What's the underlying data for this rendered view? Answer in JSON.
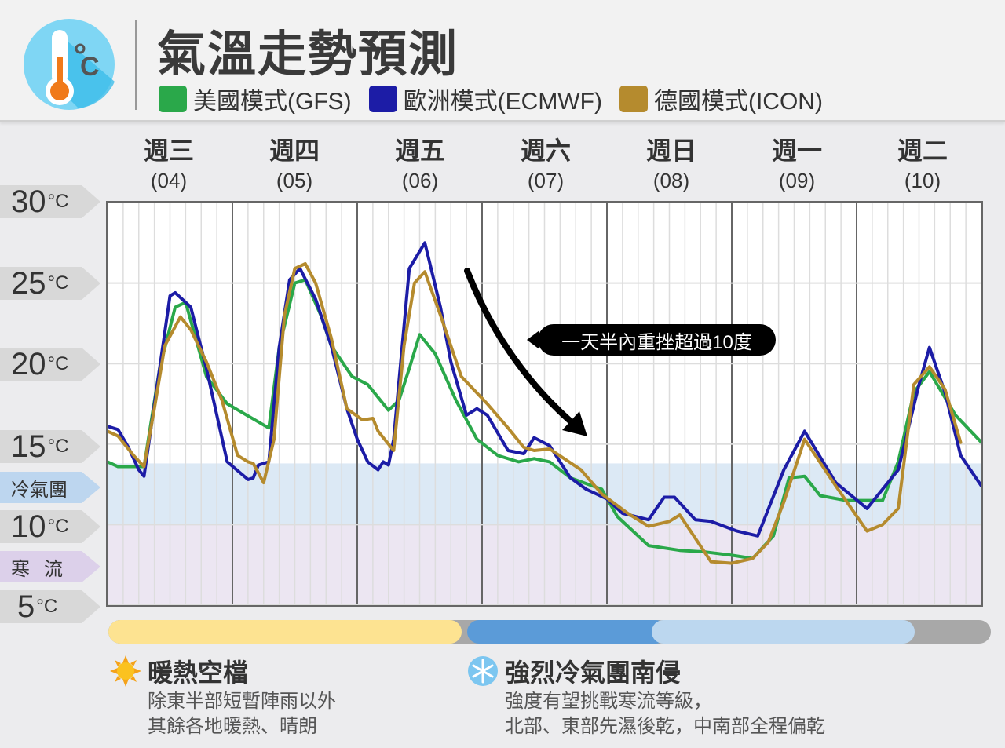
{
  "header": {
    "title": "氣溫走勢預測",
    "logo_icon": "thermometer-celsius-icon"
  },
  "legend": [
    {
      "label": "美國模式(GFS)",
      "color": "#2aa84a"
    },
    {
      "label": "歐洲模式(ECMWF)",
      "color": "#1c1ca6"
    },
    {
      "label": "德國模式(ICON)",
      "color": "#b58b2e"
    }
  ],
  "days": [
    {
      "weekday": "週三",
      "date": "(04)"
    },
    {
      "weekday": "週四",
      "date": "(05)"
    },
    {
      "weekday": "週五",
      "date": "(06)"
    },
    {
      "weekday": "週六",
      "date": "(07)"
    },
    {
      "weekday": "週日",
      "date": "(08)"
    },
    {
      "weekday": "週一",
      "date": "(09)"
    },
    {
      "weekday": "週二",
      "date": "(10)"
    }
  ],
  "y_labels": [
    {
      "value": "30",
      "unit": "°C"
    },
    {
      "value": "25",
      "unit": "°C"
    },
    {
      "value": "20",
      "unit": "°C"
    },
    {
      "value": "15",
      "unit": "°C"
    },
    {
      "value": "10",
      "unit": "°C"
    },
    {
      "value": "5",
      "unit": "°C"
    }
  ],
  "band_labels": {
    "cold_air": "冷氣團",
    "cold_surge": "寒流"
  },
  "annotation": "一天半內重挫超過10度",
  "notes": [
    {
      "icon": "sun-icon",
      "title": "暖熱空檔",
      "lines": [
        "除東半部短暫陣雨以外",
        "其餘各地暖熱、晴朗"
      ]
    },
    {
      "icon": "snowflake-icon",
      "title": "強烈冷氣團南侵",
      "lines": [
        "強度有望挑戰寒流等級，",
        "北部、東部先濕後乾，中南部全程偏乾"
      ]
    }
  ],
  "timeline_colors": {
    "warm": "#fde391",
    "cold_strong": "#5b9bd8",
    "cold_light": "#bcd7ef",
    "rest": "#a8a8a8"
  },
  "chart_data": {
    "type": "line",
    "x_unit": "day hour (DD HH)",
    "ylim": [
      5,
      30
    ],
    "yticks": [
      5,
      10,
      15,
      20,
      25,
      30
    ],
    "xlim": [
      "04 00",
      "11 00"
    ],
    "grid": true,
    "bands": [
      {
        "label": "冷氣團",
        "range": [
          10,
          13.8
        ],
        "color": "#dce9f5"
      },
      {
        "label": "寒流",
        "range": [
          5,
          10
        ],
        "color": "#ece6f2"
      }
    ],
    "series": [
      {
        "name": "美國模式(GFS)",
        "color": "#2aa84a",
        "points": [
          [
            "04 00",
            13.9
          ],
          [
            "04 02",
            13.6
          ],
          [
            "04 07",
            13.6
          ],
          [
            "04 10",
            19.7
          ],
          [
            "04 13",
            23.5
          ],
          [
            "04 15",
            23.8
          ],
          [
            "04 19",
            19.2
          ],
          [
            "04 23",
            17.5
          ],
          [
            "05 07",
            16.0
          ],
          [
            "05 09",
            21.0
          ],
          [
            "05 12",
            25.0
          ],
          [
            "05 14",
            25.2
          ],
          [
            "05 17",
            23.0
          ],
          [
            "05 19",
            21.1
          ],
          [
            "05 23",
            19.2
          ],
          [
            "06 02",
            18.7
          ],
          [
            "06 06",
            17.1
          ],
          [
            "06 08",
            17.7
          ],
          [
            "06 10",
            19.7
          ],
          [
            "06 12",
            21.8
          ],
          [
            "06 15",
            20.6
          ],
          [
            "06 19",
            17.7
          ],
          [
            "06 23",
            15.3
          ],
          [
            "07 03",
            14.3
          ],
          [
            "07 07",
            13.9
          ],
          [
            "07 10",
            14.1
          ],
          [
            "07 13",
            13.9
          ],
          [
            "07 17",
            12.9
          ],
          [
            "07 23",
            12.2
          ],
          [
            "08 02",
            10.5
          ],
          [
            "08 08",
            8.7
          ],
          [
            "08 14",
            8.4
          ],
          [
            "08 19",
            8.3
          ],
          [
            "09 00",
            8.1
          ],
          [
            "09 04",
            7.9
          ],
          [
            "09 08",
            9.3
          ],
          [
            "09 11",
            12.9
          ],
          [
            "09 14",
            13.0
          ],
          [
            "09 17",
            11.8
          ],
          [
            "09 22",
            11.5
          ],
          [
            "10 05",
            11.5
          ],
          [
            "10 08",
            13.9
          ],
          [
            "10 11",
            18.2
          ],
          [
            "10 14",
            19.5
          ],
          [
            "10 19",
            16.8
          ],
          [
            "10 24",
            15.1
          ]
        ]
      },
      {
        "name": "歐洲模式(ECMWF)",
        "color": "#1c1ca6",
        "points": [
          [
            "04 00",
            16.1
          ],
          [
            "04 02",
            15.9
          ],
          [
            "04 04",
            14.8
          ],
          [
            "04 06",
            13.4
          ],
          [
            "04 07",
            13.0
          ],
          [
            "04 10",
            19.7
          ],
          [
            "04 12",
            24.2
          ],
          [
            "04 13",
            24.4
          ],
          [
            "04 16",
            23.5
          ],
          [
            "04 19",
            19.7
          ],
          [
            "04 23",
            13.9
          ],
          [
            "05 03",
            12.8
          ],
          [
            "05 04",
            12.9
          ],
          [
            "05 05",
            13.7
          ],
          [
            "05 07",
            13.9
          ],
          [
            "05 09",
            21.0
          ],
          [
            "05 11",
            25.2
          ],
          [
            "05 13",
            25.9
          ],
          [
            "05 16",
            24.0
          ],
          [
            "05 19",
            21.1
          ],
          [
            "05 22",
            17.2
          ],
          [
            "06 00",
            15.3
          ],
          [
            "06 02",
            13.9
          ],
          [
            "06 04",
            13.4
          ],
          [
            "06 05",
            13.9
          ],
          [
            "06 06",
            13.7
          ],
          [
            "06 07",
            15.3
          ],
          [
            "06 10",
            25.9
          ],
          [
            "06 13",
            27.5
          ],
          [
            "06 16",
            23.5
          ],
          [
            "06 18",
            20.1
          ],
          [
            "06 21",
            16.8
          ],
          [
            "06 23",
            17.2
          ],
          [
            "07 01",
            16.8
          ],
          [
            "07 05",
            14.6
          ],
          [
            "07 08",
            14.4
          ],
          [
            "07 10",
            15.4
          ],
          [
            "07 13",
            14.9
          ],
          [
            "07 17",
            12.9
          ],
          [
            "07 20",
            12.2
          ],
          [
            "07 24",
            11.6
          ],
          [
            "08 03",
            10.7
          ],
          [
            "08 08",
            10.3
          ],
          [
            "08 11",
            11.7
          ],
          [
            "08 13",
            11.7
          ],
          [
            "08 17",
            10.3
          ],
          [
            "08 20",
            10.2
          ],
          [
            "09 01",
            9.6
          ],
          [
            "09 05",
            9.3
          ],
          [
            "09 10",
            13.4
          ],
          [
            "09 14",
            15.8
          ],
          [
            "09 20",
            12.6
          ],
          [
            "10 02",
            11.0
          ],
          [
            "10 08",
            13.4
          ],
          [
            "10 12",
            18.7
          ],
          [
            "10 14",
            21.0
          ],
          [
            "10 17",
            18.2
          ],
          [
            "10 20",
            14.3
          ],
          [
            "10 24",
            12.4
          ]
        ]
      },
      {
        "name": "德國模式(ICON)",
        "color": "#b58b2e",
        "points": [
          [
            "04 00",
            15.8
          ],
          [
            "04 02",
            15.5
          ],
          [
            "04 05",
            14.3
          ],
          [
            "04 07",
            13.6
          ],
          [
            "04 09",
            17.2
          ],
          [
            "04 11",
            21.1
          ],
          [
            "04 14",
            22.9
          ],
          [
            "04 16",
            22.1
          ],
          [
            "04 19",
            20.1
          ],
          [
            "04 22",
            17.7
          ],
          [
            "05 01",
            14.3
          ],
          [
            "05 03",
            13.9
          ],
          [
            "05 04",
            13.8
          ],
          [
            "05 06",
            12.6
          ],
          [
            "05 08",
            15.3
          ],
          [
            "05 10",
            23.0
          ],
          [
            "05 12",
            25.9
          ],
          [
            "05 14",
            26.2
          ],
          [
            "05 16",
            25.0
          ],
          [
            "05 19",
            21.6
          ],
          [
            "05 22",
            17.2
          ],
          [
            "06 01",
            16.5
          ],
          [
            "06 03",
            16.6
          ],
          [
            "06 04",
            15.8
          ],
          [
            "06 07",
            14.6
          ],
          [
            "06 09",
            21.1
          ],
          [
            "06 11",
            25.0
          ],
          [
            "06 13",
            25.7
          ],
          [
            "06 16",
            23.0
          ],
          [
            "06 20",
            19.2
          ],
          [
            "07 01",
            17.5
          ],
          [
            "07 05",
            16.0
          ],
          [
            "07 08",
            14.8
          ],
          [
            "07 10",
            14.6
          ],
          [
            "07 13",
            14.7
          ],
          [
            "07 19",
            13.4
          ],
          [
            "07 23",
            11.9
          ],
          [
            "08 04",
            10.7
          ],
          [
            "08 08",
            9.9
          ],
          [
            "08 12",
            10.2
          ],
          [
            "08 14",
            10.6
          ],
          [
            "08 20",
            7.7
          ],
          [
            "09 00",
            7.6
          ],
          [
            "09 04",
            7.9
          ],
          [
            "09 07",
            8.9
          ],
          [
            "09 10",
            11.4
          ],
          [
            "09 14",
            15.3
          ],
          [
            "09 20",
            12.4
          ],
          [
            "10 02",
            9.6
          ],
          [
            "10 05",
            10.0
          ],
          [
            "10 08",
            11.0
          ],
          [
            "10 11",
            18.7
          ],
          [
            "10 14",
            19.8
          ],
          [
            "10 17",
            18.4
          ],
          [
            "10 20",
            15.1
          ]
        ]
      }
    ]
  }
}
